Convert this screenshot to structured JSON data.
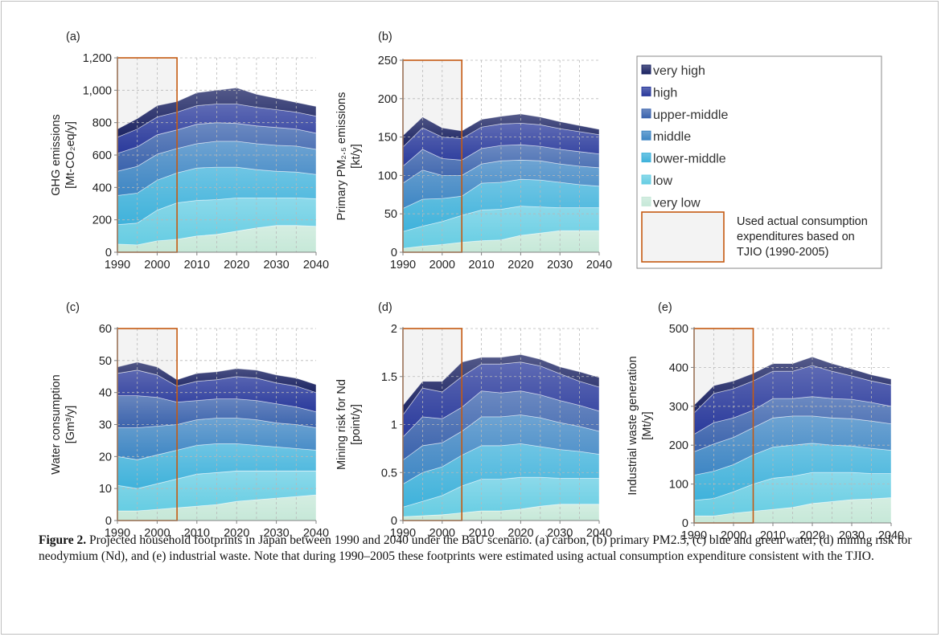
{
  "caption": {
    "label": "Figure 2.",
    "text": "Projected household footprints in Japan between 1990 and 2040 under the BaU scenario. (a) carbon, (b) primary PM2.5, (c) blue and green water, (d) mining risk for neodymium (Nd), and (e) industrial waste. Note that during 1990–2005 these footprints were estimated using actual consumption expenditure consistent with the TJIO."
  },
  "legend": {
    "items": [
      {
        "label": "very high",
        "color": "#1c2463"
      },
      {
        "label": "high",
        "color": "#2a3a9c"
      },
      {
        "label": "upper-middle",
        "color": "#3b63ad"
      },
      {
        "label": "middle",
        "color": "#3e86c4"
      },
      {
        "label": "lower-middle",
        "color": "#3fb2db"
      },
      {
        "label": "low",
        "color": "#66cde3"
      },
      {
        "label": "very low",
        "color": "#c6e8d8"
      }
    ],
    "shade_note": [
      "Used actual consumption",
      "expenditures based on",
      "TJIO (1990-2005)"
    ],
    "shade_color": "#f3f3f3",
    "shade_border": "#c55a11"
  },
  "chart_data": [
    {
      "panel": "(a)",
      "type": "area",
      "stacked": true,
      "ylabel": [
        "GHG emissions",
        "[Mt-CO₂eq/y]"
      ],
      "ylim": [
        0,
        1200
      ],
      "yticks": [
        0,
        200,
        400,
        600,
        800,
        1000,
        1200
      ],
      "ytick_labels": [
        "0",
        "200",
        "400",
        "600",
        "800",
        "1,000",
        "1,200"
      ],
      "xlim": [
        1990,
        2040
      ],
      "xticks": [
        1990,
        2000,
        2010,
        2020,
        2030,
        2040
      ],
      "shaded_range": [
        1990,
        2005
      ],
      "grid": true,
      "x": [
        1990,
        1995,
        2000,
        2005,
        2010,
        2015,
        2020,
        2025,
        2030,
        2035,
        2040
      ],
      "series": [
        {
          "name": "very low",
          "values": [
            50,
            45,
            70,
            80,
            100,
            110,
            130,
            150,
            165,
            165,
            160
          ]
        },
        {
          "name": "low",
          "values": [
            120,
            135,
            190,
            225,
            220,
            215,
            205,
            185,
            170,
            170,
            170
          ]
        },
        {
          "name": "lower-middle",
          "values": [
            180,
            185,
            185,
            185,
            200,
            200,
            190,
            175,
            165,
            160,
            150
          ]
        },
        {
          "name": "middle",
          "values": [
            150,
            165,
            160,
            150,
            150,
            160,
            160,
            160,
            160,
            160,
            155
          ]
        },
        {
          "name": "upper-middle",
          "values": [
            110,
            120,
            120,
            115,
            120,
            115,
            110,
            110,
            110,
            105,
            100
          ]
        },
        {
          "name": "high",
          "values": [
            100,
            110,
            110,
            110,
            115,
            115,
            120,
            115,
            110,
            105,
            105
          ]
        },
        {
          "name": "very high",
          "values": [
            50,
            65,
            70,
            65,
            80,
            85,
            100,
            80,
            70,
            60,
            60
          ]
        }
      ]
    },
    {
      "panel": "(b)",
      "type": "area",
      "stacked": true,
      "ylabel": [
        "Primary PM₂.₅ emissions",
        "[kt/y]"
      ],
      "ylim": [
        0,
        250
      ],
      "yticks": [
        0,
        50,
        100,
        150,
        200,
        250
      ],
      "ytick_labels": [
        "0",
        "50",
        "100",
        "150",
        "200",
        "250"
      ],
      "xlim": [
        1990,
        2040
      ],
      "xticks": [
        1990,
        2000,
        2010,
        2020,
        2030,
        2040
      ],
      "shaded_range": [
        1990,
        2005
      ],
      "grid": true,
      "x": [
        1990,
        1995,
        2000,
        2005,
        2010,
        2015,
        2020,
        2025,
        2030,
        2035,
        2040
      ],
      "series": [
        {
          "name": "very low",
          "values": [
            5,
            8,
            10,
            13,
            15,
            16,
            22,
            25,
            28,
            28,
            28
          ]
        },
        {
          "name": "low",
          "values": [
            22,
            26,
            30,
            35,
            40,
            40,
            38,
            34,
            30,
            30,
            30
          ]
        },
        {
          "name": "lower-middle",
          "values": [
            30,
            35,
            30,
            25,
            35,
            35,
            35,
            35,
            33,
            30,
            28
          ]
        },
        {
          "name": "middle",
          "values": [
            33,
            38,
            30,
            27,
            25,
            28,
            25,
            25,
            24,
            24,
            24
          ]
        },
        {
          "name": "upper-middle",
          "values": [
            22,
            27,
            22,
            20,
            20,
            20,
            20,
            19,
            19,
            19,
            18
          ]
        },
        {
          "name": "high",
          "values": [
            25,
            28,
            28,
            28,
            28,
            28,
            28,
            28,
            27,
            26,
            25
          ]
        },
        {
          "name": "very high",
          "values": [
            15,
            14,
            12,
            10,
            10,
            10,
            12,
            10,
            9,
            8,
            7
          ]
        }
      ]
    },
    {
      "panel": "(c)",
      "type": "area",
      "stacked": true,
      "ylabel": [
        "Water consumption",
        "[Gm³/y]"
      ],
      "ylim": [
        0,
        60
      ],
      "yticks": [
        0,
        10,
        20,
        30,
        40,
        50,
        60
      ],
      "ytick_labels": [
        "0",
        "10",
        "20",
        "30",
        "40",
        "50",
        "60"
      ],
      "xlim": [
        1990,
        2040
      ],
      "xticks": [
        1990,
        2000,
        2010,
        2020,
        2030,
        2040
      ],
      "shaded_range": [
        1990,
        2005
      ],
      "grid": true,
      "x": [
        1990,
        1995,
        2000,
        2005,
        2010,
        2015,
        2020,
        2025,
        2030,
        2035,
        2040
      ],
      "series": [
        {
          "name": "very low",
          "values": [
            3,
            3,
            3.5,
            4,
            4.5,
            5,
            6,
            6.5,
            7,
            7.5,
            8
          ]
        },
        {
          "name": "low",
          "values": [
            8,
            7,
            8,
            9,
            10,
            10,
            9.5,
            9,
            8.5,
            8,
            7.5
          ]
        },
        {
          "name": "lower-middle",
          "values": [
            9,
            9,
            9,
            9,
            9,
            9,
            8.5,
            8,
            7.5,
            7,
            6.5
          ]
        },
        {
          "name": "middle",
          "values": [
            9,
            10,
            9,
            8,
            8,
            8,
            8,
            8,
            7.5,
            7.5,
            7
          ]
        },
        {
          "name": "upper-middle",
          "values": [
            10,
            10,
            9,
            7,
            6,
            6,
            6,
            6,
            6,
            5.5,
            5
          ]
        },
        {
          "name": "high",
          "values": [
            7,
            8,
            7,
            5,
            6,
            6,
            7,
            7,
            6.5,
            6.5,
            6
          ]
        },
        {
          "name": "very high",
          "values": [
            2,
            2.5,
            2.5,
            2,
            2.5,
            2.5,
            2.5,
            2.5,
            2.5,
            2.5,
            2.5
          ]
        }
      ]
    },
    {
      "panel": "(d)",
      "type": "area",
      "stacked": true,
      "ylabel": [
        "Mining risk for Nd",
        "[point/y]"
      ],
      "ylim": [
        0,
        2
      ],
      "yticks": [
        0,
        0.5,
        1,
        1.5,
        2
      ],
      "ytick_labels": [
        "0",
        "0.5",
        "1",
        "1.5",
        "2"
      ],
      "xlim": [
        1990,
        2040
      ],
      "xticks": [
        1990,
        2000,
        2010,
        2020,
        2030,
        2040
      ],
      "shaded_range": [
        1990,
        2005
      ],
      "grid": true,
      "x": [
        1990,
        1995,
        2000,
        2005,
        2010,
        2015,
        2020,
        2025,
        2030,
        2035,
        2040
      ],
      "series": [
        {
          "name": "very low",
          "values": [
            0.04,
            0.05,
            0.06,
            0.08,
            0.1,
            0.1,
            0.12,
            0.15,
            0.17,
            0.17,
            0.17
          ]
        },
        {
          "name": "low",
          "values": [
            0.1,
            0.15,
            0.2,
            0.28,
            0.33,
            0.33,
            0.33,
            0.3,
            0.27,
            0.27,
            0.27
          ]
        },
        {
          "name": "lower-middle",
          "values": [
            0.24,
            0.3,
            0.3,
            0.32,
            0.35,
            0.35,
            0.35,
            0.32,
            0.3,
            0.28,
            0.25
          ]
        },
        {
          "name": "middle",
          "values": [
            0.25,
            0.28,
            0.25,
            0.25,
            0.3,
            0.3,
            0.3,
            0.3,
            0.28,
            0.26,
            0.24
          ]
        },
        {
          "name": "upper-middle",
          "values": [
            0.24,
            0.3,
            0.25,
            0.25,
            0.27,
            0.25,
            0.25,
            0.24,
            0.23,
            0.22,
            0.21
          ]
        },
        {
          "name": "high",
          "values": [
            0.23,
            0.3,
            0.28,
            0.32,
            0.28,
            0.3,
            0.3,
            0.3,
            0.28,
            0.25,
            0.25
          ]
        },
        {
          "name": "very high",
          "values": [
            0.1,
            0.07,
            0.11,
            0.15,
            0.07,
            0.07,
            0.08,
            0.07,
            0.07,
            0.1,
            0.1
          ]
        }
      ]
    },
    {
      "panel": "(e)",
      "type": "area",
      "stacked": true,
      "ylabel": [
        "Industrial waste generation",
        "[Mt/y]"
      ],
      "ylim": [
        0,
        500
      ],
      "yticks": [
        0,
        100,
        200,
        300,
        400,
        500
      ],
      "ytick_labels": [
        "0",
        "100",
        "200",
        "300",
        "400",
        "500"
      ],
      "xlim": [
        1990,
        2040
      ],
      "xticks": [
        1990,
        2000,
        2010,
        2020,
        2030,
        2040
      ],
      "shaded_range": [
        1990,
        2005
      ],
      "grid": true,
      "x": [
        1990,
        1995,
        2000,
        2005,
        2010,
        2015,
        2020,
        2025,
        2030,
        2035,
        2040
      ],
      "series": [
        {
          "name": "very low",
          "values": [
            18,
            18,
            25,
            30,
            35,
            40,
            50,
            55,
            60,
            62,
            65
          ]
        },
        {
          "name": "low",
          "values": [
            40,
            45,
            55,
            70,
            80,
            80,
            80,
            75,
            70,
            65,
            62
          ]
        },
        {
          "name": "lower-middle",
          "values": [
            65,
            70,
            70,
            75,
            80,
            80,
            75,
            70,
            68,
            65,
            60
          ]
        },
        {
          "name": "middle",
          "values": [
            60,
            70,
            70,
            70,
            75,
            75,
            70,
            70,
            70,
            70,
            68
          ]
        },
        {
          "name": "upper-middle",
          "values": [
            45,
            55,
            50,
            45,
            50,
            45,
            50,
            50,
            50,
            48,
            45
          ]
        },
        {
          "name": "high",
          "values": [
            55,
            75,
            75,
            75,
            70,
            70,
            80,
            70,
            60,
            55,
            55
          ]
        },
        {
          "name": "very high",
          "values": [
            20,
            20,
            20,
            20,
            20,
            20,
            22,
            20,
            18,
            16,
            15
          ]
        }
      ]
    }
  ]
}
